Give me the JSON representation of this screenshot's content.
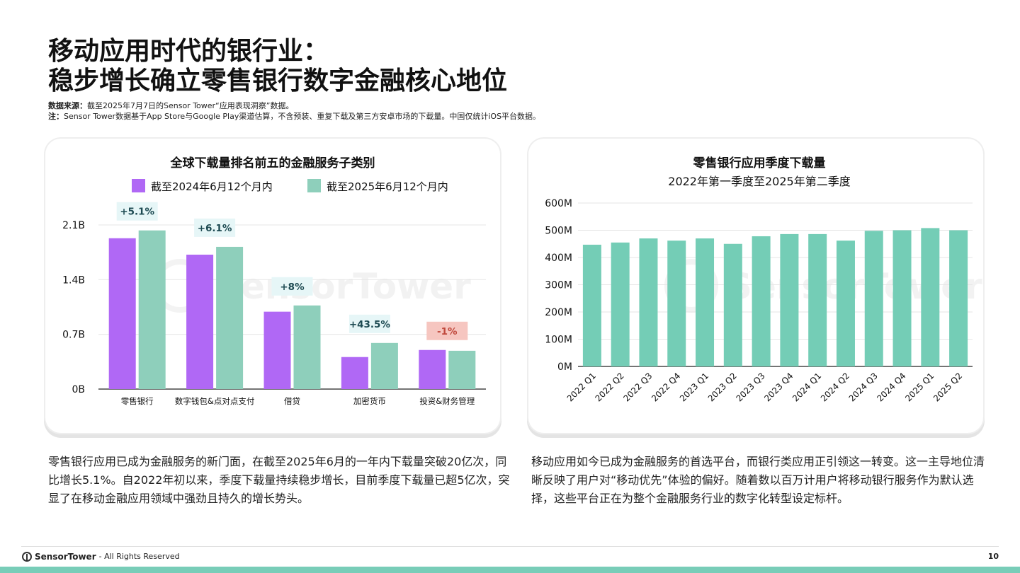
{
  "header": {
    "title_line1": "移动应用时代的银行业：",
    "title_line2": "稳步增长确立零售银行数字金融核心地位",
    "source_label": "数据来源：",
    "source_text": "截至2025年7月7日的Sensor Tower“应用表现洞察”数据。",
    "note_label": "注：",
    "note_text": "Sensor Tower数据基于App Store与Google Play渠道估算，不含预装、重复下载及第三方安卓市场的下载量。中国仅统计iOS平台数据。"
  },
  "watermark": "SensorTower",
  "chart_data": [
    {
      "type": "bar",
      "title": "全球下载量排名前五的金融服务子类别",
      "categories": [
        "零售银行",
        "数字钱包&点对点支付",
        "借贷",
        "加密货币",
        "投资&财务管理"
      ],
      "series": [
        {
          "name": "截至2024年6月12个月内",
          "values": [
            1.93,
            1.72,
            0.99,
            0.41,
            0.5
          ]
        },
        {
          "name": "截至2025年6月12个月内",
          "values": [
            2.03,
            1.82,
            1.07,
            0.59,
            0.49
          ]
        }
      ],
      "growth_labels": [
        "+5.1%",
        "+6.1%",
        "+8%",
        "+43.5%",
        "-1%"
      ],
      "y_ticks": [
        "0B",
        "0.7B",
        "1.4B",
        "2.1B"
      ],
      "ylim": [
        0,
        2.1
      ],
      "legend": "top",
      "grid": true,
      "colors": {
        "2024": "#b068f5",
        "2025": "#8ecfbb",
        "growth_bg": "#e6f6f7",
        "decline_bg": "#f6c6c0",
        "decline_text": "#c0483c"
      }
    },
    {
      "type": "bar",
      "title": "零售银行应用季度下载量",
      "subtitle": "2022年第一季度至2025年第二季度",
      "categories": [
        "2022 Q1",
        "2022 Q2",
        "2022 Q3",
        "2022 Q4",
        "2023 Q1",
        "2023 Q2",
        "2023 Q3",
        "2023 Q4",
        "2024 Q1",
        "2024 Q2",
        "2024 Q3",
        "2024 Q4",
        "2025 Q1",
        "2025 Q2"
      ],
      "values": [
        447,
        455,
        470,
        462,
        470,
        450,
        478,
        486,
        486,
        462,
        498,
        500,
        508,
        500
      ],
      "y_ticks": [
        "0M",
        "100M",
        "200M",
        "300M",
        "400M",
        "500M",
        "600M"
      ],
      "ylim": [
        0,
        600
      ],
      "grid": true,
      "colors": {
        "bar": "#74cdb6"
      }
    }
  ],
  "text": {
    "left": "零售银行应用已成为金融服务的新门面，在截至2025年6月的一年内下载量突破20亿次，同比增长5.1%。自2022年初以来，季度下载量持续稳步增长，目前季度下载量已超5亿次，突显了在移动金融应用领域中强劲且持久的增长势头。",
    "right": "移动应用如今已成为金融服务的首选平台，而银行类应用正引领这一转变。这一主导地位清晰反映了用户对“移动优先”体验的偏好。随着数以百万计用户将移动银行服务作为默认选择，这些平台正在为整个金融服务行业的数字化转型设定标杆。"
  },
  "footer": {
    "brand": "SensorTower",
    "rights": "- All Rights Reserved",
    "page": "10"
  }
}
